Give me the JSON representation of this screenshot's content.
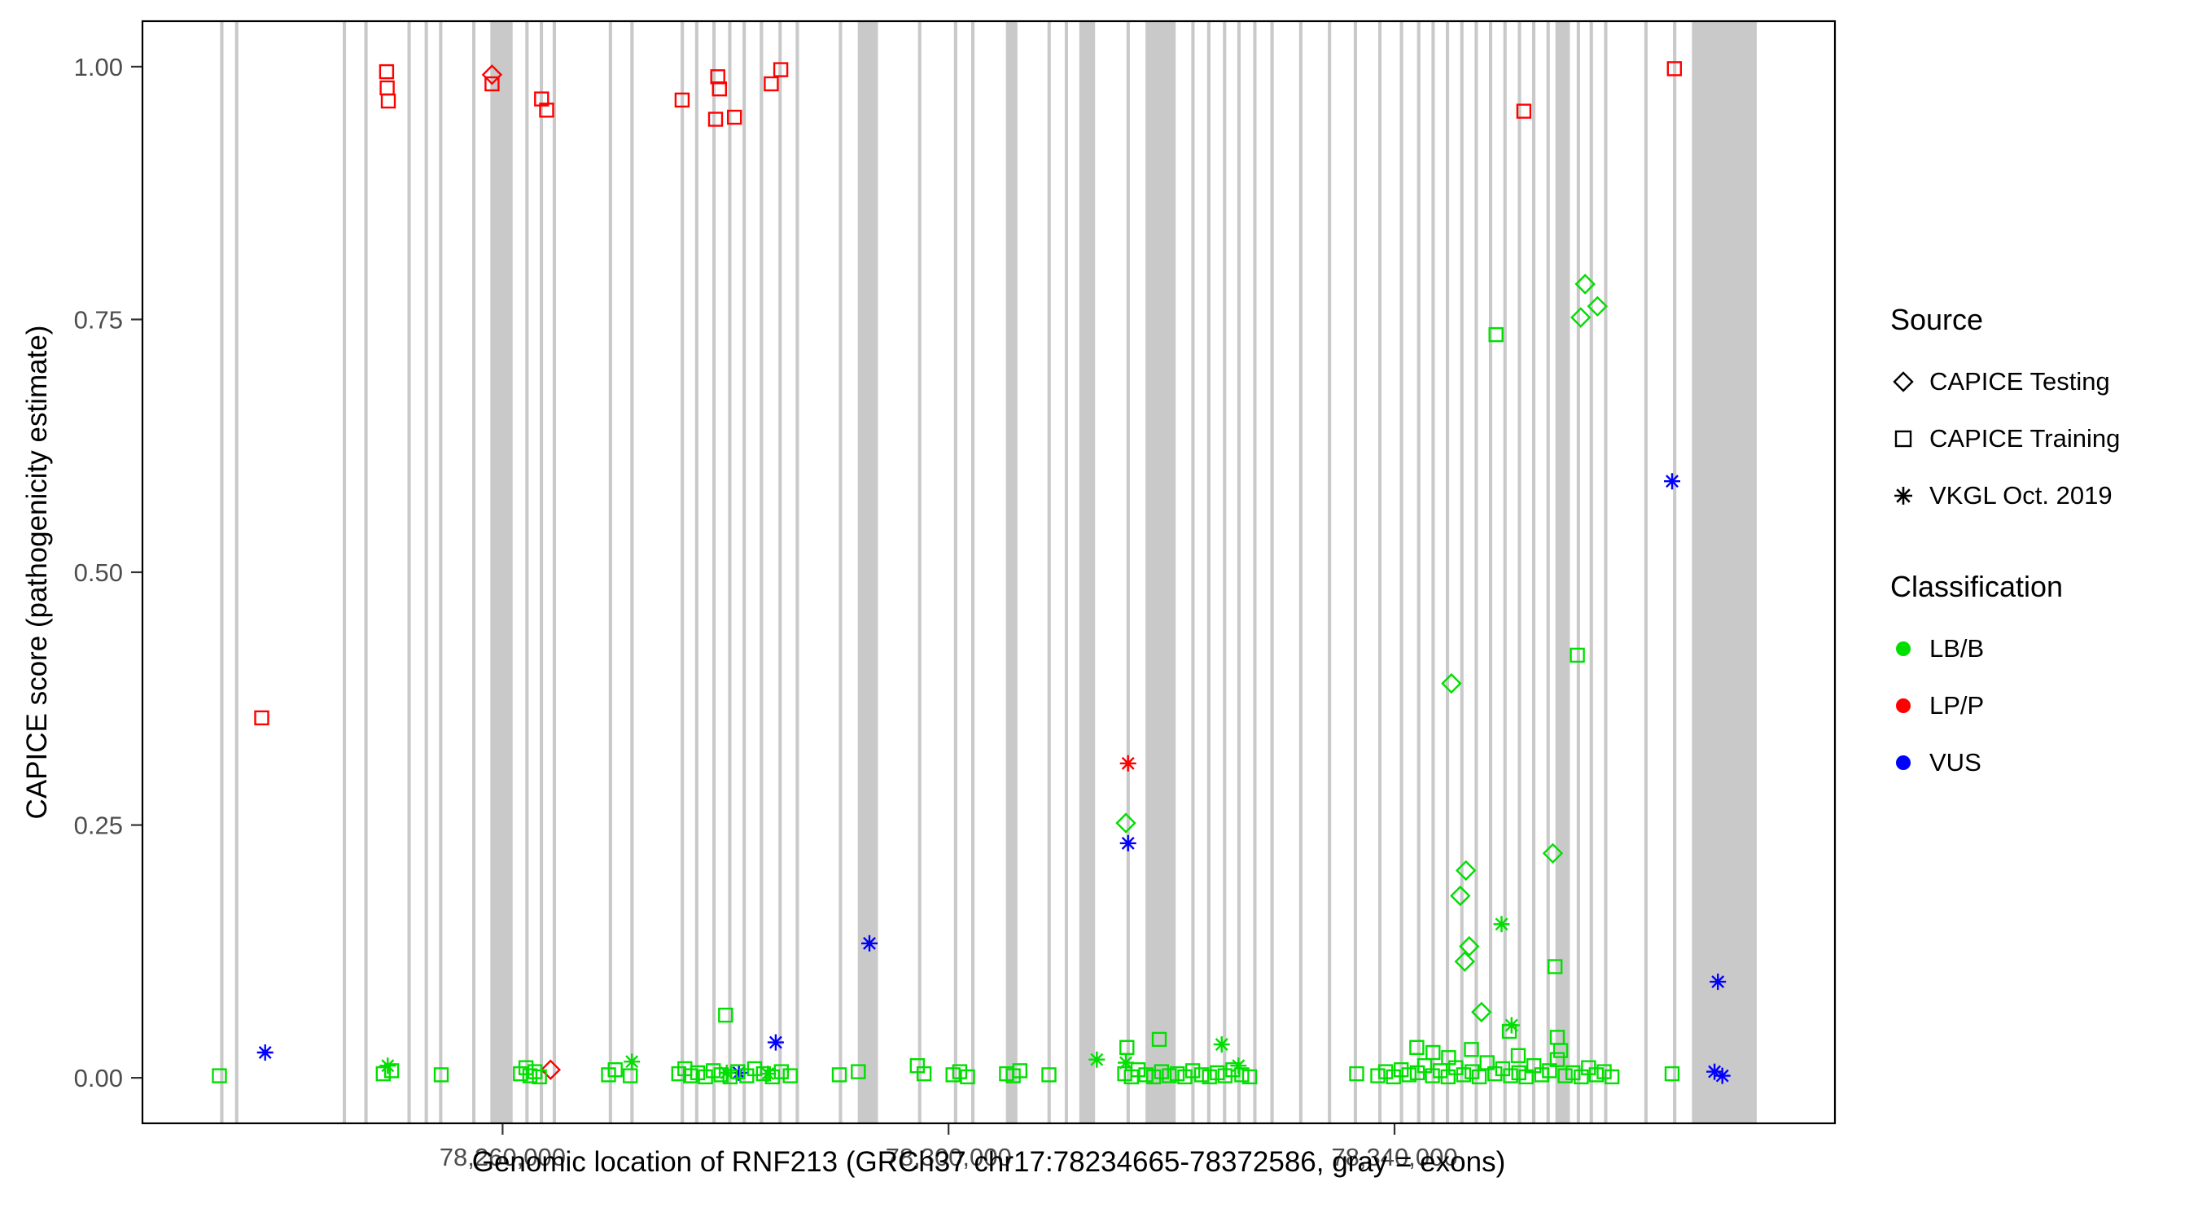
{
  "figure": {
    "background": "#ffffff"
  },
  "legend": {
    "source": {
      "title": "Source",
      "items": [
        {
          "label": "CAPICE Testing",
          "shape": "diamond"
        },
        {
          "label": "CAPICE Training",
          "shape": "square"
        },
        {
          "label": "VKGL Oct. 2019",
          "shape": "asterisk"
        }
      ]
    },
    "classification": {
      "title": "Classification",
      "items": [
        {
          "label": "LB/B",
          "color": "#00DF00"
        },
        {
          "label": "LP/P",
          "color": "#FF0000"
        },
        {
          "label": "VUS",
          "color": "#0000FF"
        }
      ]
    }
  },
  "chart_data": {
    "type": "scatter",
    "title": "",
    "xlabel": "Genomic location of RNF213 (GRCh37 chr17:78234665-78372586, gray = exons)",
    "ylabel": "CAPICE score (pathogenicity estimate)",
    "xlim": [
      78227700,
      78379500
    ],
    "ylim": [
      -0.045,
      1.045
    ],
    "x_ticks": [
      {
        "value": 78260000,
        "label": "78,260,000"
      },
      {
        "value": 78300000,
        "label": "78,300,000"
      },
      {
        "value": 78340000,
        "label": "78,340,000"
      }
    ],
    "y_ticks": [
      {
        "value": 0.0,
        "label": "0.00"
      },
      {
        "value": 0.25,
        "label": "0.25"
      },
      {
        "value": 0.5,
        "label": "0.50"
      },
      {
        "value": 0.75,
        "label": "0.75"
      },
      {
        "value": 1.0,
        "label": "1.00"
      }
    ],
    "exon_color": "#c9c9c9",
    "colors": {
      "LB/B": "#00DF00",
      "LP/P": "#FF0000",
      "VUS": "#0000FF"
    },
    "source_shapes": {
      "CAPICE Testing": "diamond",
      "CAPICE Training": "square",
      "VKGL Oct. 2019": "asterisk"
    },
    "class_codes": {
      "B": "LB/B",
      "P": "LP/P",
      "U": "VUS"
    },
    "source_codes": {
      "T": "CAPICE Testing",
      "R": "CAPICE Training",
      "V": "VKGL Oct. 2019"
    },
    "exons": [
      [
        78234665,
        78234965
      ],
      [
        78236000,
        78236300
      ],
      [
        78245660,
        78245960
      ],
      [
        78247600,
        78247900
      ],
      [
        78251470,
        78251770
      ],
      [
        78253010,
        78253310
      ],
      [
        78254300,
        78254600
      ],
      [
        78257270,
        78257570
      ],
      [
        78258900,
        78260900
      ],
      [
        78262040,
        78262340
      ],
      [
        78263330,
        78263630
      ],
      [
        78264490,
        78264790
      ],
      [
        78269520,
        78269820
      ],
      [
        78271460,
        78271760
      ],
      [
        78275970,
        78276270
      ],
      [
        78277260,
        78277560
      ],
      [
        78278810,
        78279110
      ],
      [
        78280230,
        78280530
      ],
      [
        78281520,
        78281820
      ],
      [
        78283070,
        78283370
      ],
      [
        78284740,
        78285040
      ],
      [
        78286290,
        78286590
      ],
      [
        78290160,
        78290460
      ],
      [
        78291860,
        78293670
      ],
      [
        78297260,
        78297560
      ],
      [
        78300480,
        78300780
      ],
      [
        78302030,
        78302330
      ],
      [
        78305150,
        78306180
      ],
      [
        78308870,
        78309170
      ],
      [
        78310420,
        78310720
      ],
      [
        78311730,
        78313150
      ],
      [
        78315960,
        78316260
      ],
      [
        78317660,
        78320370
      ],
      [
        78321770,
        78322070
      ],
      [
        78323190,
        78323490
      ],
      [
        78324610,
        78324910
      ],
      [
        78325900,
        78326200
      ],
      [
        78327320,
        78327620
      ],
      [
        78328860,
        78329160
      ],
      [
        78331440,
        78331740
      ],
      [
        78334020,
        78334320
      ],
      [
        78336340,
        78336640
      ],
      [
        78338540,
        78338840
      ],
      [
        78340470,
        78340770
      ],
      [
        78342020,
        78342320
      ],
      [
        78343310,
        78343610
      ],
      [
        78344600,
        78344900
      ],
      [
        78345890,
        78346190
      ],
      [
        78347180,
        78347480
      ],
      [
        78348470,
        78348770
      ],
      [
        78349760,
        78350060
      ],
      [
        78351050,
        78351350
      ],
      [
        78352340,
        78352640
      ],
      [
        78353630,
        78353930
      ],
      [
        78354430,
        78355720
      ],
      [
        78356340,
        78356640
      ],
      [
        78357500,
        78357800
      ],
      [
        78358790,
        78359090
      ],
      [
        78362400,
        78362700
      ],
      [
        78364980,
        78365280
      ],
      [
        78366680,
        78372490
      ]
    ],
    "point_format": [
      "x",
      "y",
      "classification_code",
      "source_code"
    ],
    "points": [
      [
        78249600,
        0.995,
        "P",
        "R"
      ],
      [
        78249650,
        0.979,
        "P",
        "R"
      ],
      [
        78249750,
        0.966,
        "P",
        "R"
      ],
      [
        78259050,
        0.983,
        "P",
        "R"
      ],
      [
        78259050,
        0.992,
        "P",
        "T"
      ],
      [
        78263500,
        0.968,
        "P",
        "R"
      ],
      [
        78263950,
        0.957,
        "P",
        "R"
      ],
      [
        78276100,
        0.967,
        "P",
        "R"
      ],
      [
        78279300,
        0.99,
        "P",
        "R"
      ],
      [
        78279450,
        0.978,
        "P",
        "R"
      ],
      [
        78279100,
        0.948,
        "P",
        "R"
      ],
      [
        78280800,
        0.95,
        "P",
        "R"
      ],
      [
        78284100,
        0.983,
        "P",
        "R"
      ],
      [
        78284950,
        0.997,
        "P",
        "R"
      ],
      [
        78238400,
        0.356,
        "P",
        "R"
      ],
      [
        78351600,
        0.956,
        "P",
        "R"
      ],
      [
        78365100,
        0.998,
        "P",
        "R"
      ],
      [
        78264300,
        0.008,
        "P",
        "T"
      ],
      [
        78316100,
        0.311,
        "P",
        "V"
      ],
      [
        78238700,
        0.025,
        "U",
        "V"
      ],
      [
        78281200,
        0.005,
        "U",
        "V"
      ],
      [
        78284500,
        0.035,
        "U",
        "V"
      ],
      [
        78292900,
        0.133,
        "U",
        "V"
      ],
      [
        78316100,
        0.232,
        "U",
        "V"
      ],
      [
        78364900,
        0.59,
        "U",
        "V"
      ],
      [
        78369000,
        0.095,
        "U",
        "V"
      ],
      [
        78368700,
        0.006,
        "U",
        "V"
      ],
      [
        78369400,
        0.002,
        "U",
        "V"
      ],
      [
        78357100,
        0.785,
        "B",
        "T"
      ],
      [
        78358200,
        0.763,
        "B",
        "T"
      ],
      [
        78356700,
        0.752,
        "B",
        "T"
      ],
      [
        78345100,
        0.39,
        "B",
        "T"
      ],
      [
        78354200,
        0.222,
        "B",
        "T"
      ],
      [
        78346400,
        0.205,
        "B",
        "T"
      ],
      [
        78345900,
        0.18,
        "B",
        "T"
      ],
      [
        78346700,
        0.13,
        "B",
        "T"
      ],
      [
        78346300,
        0.115,
        "B",
        "T"
      ],
      [
        78347800,
        0.065,
        "B",
        "T"
      ],
      [
        78315900,
        0.252,
        "B",
        "T"
      ],
      [
        78349100,
        0.735,
        "B",
        "R"
      ],
      [
        78356400,
        0.418,
        "B",
        "R"
      ],
      [
        78354400,
        0.11,
        "B",
        "R"
      ],
      [
        78280000,
        0.062,
        "B",
        "R"
      ],
      [
        78316000,
        0.03,
        "B",
        "R"
      ],
      [
        78318900,
        0.038,
        "B",
        "R"
      ],
      [
        78354600,
        0.04,
        "B",
        "R"
      ],
      [
        78354900,
        0.027,
        "B",
        "R"
      ],
      [
        78350300,
        0.046,
        "B",
        "R"
      ],
      [
        78249700,
        0.012,
        "B",
        "V"
      ],
      [
        78271600,
        0.016,
        "B",
        "V"
      ],
      [
        78280100,
        0.005,
        "B",
        "V"
      ],
      [
        78313300,
        0.018,
        "B",
        "V"
      ],
      [
        78315900,
        0.015,
        "B",
        "V"
      ],
      [
        78324500,
        0.033,
        "B",
        "V"
      ],
      [
        78326000,
        0.012,
        "B",
        "V"
      ],
      [
        78349600,
        0.152,
        "B",
        "V"
      ],
      [
        78350500,
        0.052,
        "B",
        "V"
      ],
      [
        78283800,
        0.004,
        "B",
        "V"
      ],
      [
        78234600,
        0.002,
        "B",
        "R"
      ],
      [
        78249300,
        0.004,
        "B",
        "R"
      ],
      [
        78250050,
        0.007,
        "B",
        "R"
      ],
      [
        78254500,
        0.003,
        "B",
        "R"
      ],
      [
        78261600,
        0.004,
        "B",
        "R"
      ],
      [
        78262100,
        0.01,
        "B",
        "R"
      ],
      [
        78262450,
        0.002,
        "B",
        "R"
      ],
      [
        78262900,
        0.006,
        "B",
        "R"
      ],
      [
        78263300,
        0.001,
        "B",
        "R"
      ],
      [
        78269500,
        0.003,
        "B",
        "R"
      ],
      [
        78270100,
        0.008,
        "B",
        "R"
      ],
      [
        78271450,
        0.002,
        "B",
        "R"
      ],
      [
        78275800,
        0.004,
        "B",
        "R"
      ],
      [
        78276350,
        0.009,
        "B",
        "R"
      ],
      [
        78276850,
        0.002,
        "B",
        "R"
      ],
      [
        78277500,
        0.005,
        "B",
        "R"
      ],
      [
        78278200,
        0.001,
        "B",
        "R"
      ],
      [
        78278900,
        0.007,
        "B",
        "R"
      ],
      [
        78279600,
        0.003,
        "B",
        "R"
      ],
      [
        78280400,
        0.001,
        "B",
        "R"
      ],
      [
        78281100,
        0.006,
        "B",
        "R"
      ],
      [
        78281900,
        0.002,
        "B",
        "R"
      ],
      [
        78282600,
        0.009,
        "B",
        "R"
      ],
      [
        78283400,
        0.004,
        "B",
        "R"
      ],
      [
        78284200,
        0.001,
        "B",
        "R"
      ],
      [
        78285000,
        0.006,
        "B",
        "R"
      ],
      [
        78285800,
        0.002,
        "B",
        "R"
      ],
      [
        78290200,
        0.003,
        "B",
        "R"
      ],
      [
        78291900,
        0.006,
        "B",
        "R"
      ],
      [
        78297200,
        0.012,
        "B",
        "R"
      ],
      [
        78297800,
        0.004,
        "B",
        "R"
      ],
      [
        78300400,
        0.003,
        "B",
        "R"
      ],
      [
        78301000,
        0.006,
        "B",
        "R"
      ],
      [
        78301700,
        0.001,
        "B",
        "R"
      ],
      [
        78305200,
        0.004,
        "B",
        "R"
      ],
      [
        78305800,
        0.002,
        "B",
        "R"
      ],
      [
        78306400,
        0.007,
        "B",
        "R"
      ],
      [
        78309000,
        0.003,
        "B",
        "R"
      ],
      [
        78315800,
        0.004,
        "B",
        "R"
      ],
      [
        78316400,
        0.001,
        "B",
        "R"
      ],
      [
        78317000,
        0.008,
        "B",
        "R"
      ],
      [
        78317700,
        0.003,
        "B",
        "R"
      ],
      [
        78318400,
        0.001,
        "B",
        "R"
      ],
      [
        78319100,
        0.006,
        "B",
        "R"
      ],
      [
        78319800,
        0.002,
        "B",
        "R"
      ],
      [
        78320500,
        0.004,
        "B",
        "R"
      ],
      [
        78321200,
        0.001,
        "B",
        "R"
      ],
      [
        78321900,
        0.007,
        "B",
        "R"
      ],
      [
        78322700,
        0.003,
        "B",
        "R"
      ],
      [
        78323400,
        0.001,
        "B",
        "R"
      ],
      [
        78324100,
        0.005,
        "B",
        "R"
      ],
      [
        78324800,
        0.002,
        "B",
        "R"
      ],
      [
        78325500,
        0.008,
        "B",
        "R"
      ],
      [
        78326300,
        0.003,
        "B",
        "R"
      ],
      [
        78327000,
        0.001,
        "B",
        "R"
      ],
      [
        78336600,
        0.004,
        "B",
        "R"
      ],
      [
        78338500,
        0.002,
        "B",
        "R"
      ],
      [
        78339200,
        0.006,
        "B",
        "R"
      ],
      [
        78339900,
        0.001,
        "B",
        "R"
      ],
      [
        78340600,
        0.008,
        "B",
        "R"
      ],
      [
        78341300,
        0.003,
        "B",
        "R"
      ],
      [
        78342000,
        0.03,
        "B",
        "R"
      ],
      [
        78342050,
        0.005,
        "B",
        "R"
      ],
      [
        78342700,
        0.012,
        "B",
        "R"
      ],
      [
        78343400,
        0.002,
        "B",
        "R"
      ],
      [
        78343450,
        0.025,
        "B",
        "R"
      ],
      [
        78344100,
        0.007,
        "B",
        "R"
      ],
      [
        78344800,
        0.001,
        "B",
        "R"
      ],
      [
        78344850,
        0.02,
        "B",
        "R"
      ],
      [
        78345500,
        0.01,
        "B",
        "R"
      ],
      [
        78346200,
        0.003,
        "B",
        "R"
      ],
      [
        78346900,
        0.028,
        "B",
        "R"
      ],
      [
        78346950,
        0.006,
        "B",
        "R"
      ],
      [
        78347600,
        0.001,
        "B",
        "R"
      ],
      [
        78348300,
        0.015,
        "B",
        "R"
      ],
      [
        78349000,
        0.004,
        "B",
        "R"
      ],
      [
        78349700,
        0.009,
        "B",
        "R"
      ],
      [
        78350400,
        0.002,
        "B",
        "R"
      ],
      [
        78351100,
        0.022,
        "B",
        "R"
      ],
      [
        78351150,
        0.005,
        "B",
        "R"
      ],
      [
        78351800,
        0.001,
        "B",
        "R"
      ],
      [
        78352500,
        0.012,
        "B",
        "R"
      ],
      [
        78353200,
        0.003,
        "B",
        "R"
      ],
      [
        78353900,
        0.007,
        "B",
        "R"
      ],
      [
        78354600,
        0.018,
        "B",
        "R"
      ],
      [
        78355300,
        0.002,
        "B",
        "R"
      ],
      [
        78356000,
        0.005,
        "B",
        "R"
      ],
      [
        78356750,
        0.001,
        "B",
        "R"
      ],
      [
        78357400,
        0.01,
        "B",
        "R"
      ],
      [
        78358100,
        0.003,
        "B",
        "R"
      ],
      [
        78358800,
        0.006,
        "B",
        "R"
      ],
      [
        78359500,
        0.001,
        "B",
        "R"
      ],
      [
        78364900,
        0.004,
        "B",
        "R"
      ]
    ]
  }
}
